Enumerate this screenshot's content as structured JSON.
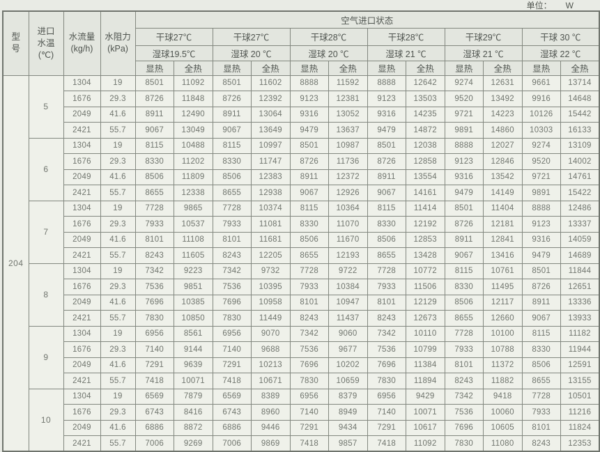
{
  "unit": {
    "label": "单位：",
    "value": "W"
  },
  "table": {
    "header": {
      "model_lines": [
        "型",
        "号"
      ],
      "inlet_lines": [
        "进口",
        "水温",
        "(℃)"
      ],
      "flow_lines": [
        "水流量",
        "(kg/h)"
      ],
      "resistance_lines": [
        "水阻力",
        "(kPa)"
      ],
      "air_state": "空气进口状态",
      "groups": [
        {
          "dry": "干球27℃",
          "wet": "湿球19.5℃"
        },
        {
          "dry": "干球27℃",
          "wet": "湿球 20 ℃"
        },
        {
          "dry": "干球28℃",
          "wet": "湿球 20 ℃"
        },
        {
          "dry": "干球28℃",
          "wet": "湿球 21 ℃"
        },
        {
          "dry": "干球29℃",
          "wet": "湿球 21 ℃"
        },
        {
          "dry": "干球 30 ℃",
          "wet": "湿球 22 ℃"
        }
      ],
      "sensible": "显热",
      "total": "全热"
    },
    "model_value": "204",
    "row_groups": [
      {
        "water_temp": "5",
        "rows": [
          {
            "flow": "1304",
            "resistance": "19",
            "values": [
              8501,
              11092,
              8501,
              11602,
              8888,
              11592,
              8888,
              12642,
              9274,
              12631,
              9661,
              13714
            ]
          },
          {
            "flow": "1676",
            "resistance": "29.3",
            "values": [
              8726,
              11848,
              8726,
              12392,
              9123,
              12381,
              9123,
              13503,
              9520,
              13492,
              9916,
              14648
            ]
          },
          {
            "flow": "2049",
            "resistance": "41.6",
            "values": [
              8911,
              12490,
              8911,
              13064,
              9316,
              13052,
              9316,
              14235,
              9721,
              14223,
              10126,
              15442
            ]
          },
          {
            "flow": "2421",
            "resistance": "55.7",
            "values": [
              9067,
              13049,
              9067,
              13649,
              9479,
              13637,
              9479,
              14872,
              9891,
              14860,
              10303,
              16133
            ]
          }
        ]
      },
      {
        "water_temp": "6",
        "rows": [
          {
            "flow": "1304",
            "resistance": "19",
            "values": [
              8115,
              10488,
              8115,
              10997,
              8501,
              10987,
              8501,
              12038,
              8888,
              12027,
              9274,
              13109
            ]
          },
          {
            "flow": "1676",
            "resistance": "29.3",
            "values": [
              8330,
              11202,
              8330,
              11747,
              8726,
              11736,
              8726,
              12858,
              9123,
              12846,
              9520,
              14002
            ]
          },
          {
            "flow": "2049",
            "resistance": "41.6",
            "values": [
              8506,
              11809,
              8506,
              12383,
              8911,
              12372,
              8911,
              13554,
              9316,
              13542,
              9721,
              14761
            ]
          },
          {
            "flow": "2421",
            "resistance": "55.7",
            "values": [
              8655,
              12338,
              8655,
              12938,
              9067,
              12926,
              9067,
              14161,
              9479,
              14149,
              9891,
              15422
            ]
          }
        ]
      },
      {
        "water_temp": "7",
        "rows": [
          {
            "flow": "1304",
            "resistance": "19",
            "values": [
              7728,
              9865,
              7728,
              10374,
              8115,
              10364,
              8115,
              11414,
              8501,
              11404,
              8888,
              12486
            ]
          },
          {
            "flow": "1676",
            "resistance": "29.3",
            "values": [
              7933,
              10537,
              7933,
              11081,
              8330,
              11070,
              8330,
              12192,
              8726,
              12181,
              9123,
              13337
            ]
          },
          {
            "flow": "2049",
            "resistance": "41.6",
            "values": [
              8101,
              11108,
              8101,
              11681,
              8506,
              11670,
              8506,
              12853,
              8911,
              12841,
              9316,
              14059
            ]
          },
          {
            "flow": "2421",
            "resistance": "55.7",
            "values": [
              8243,
              11605,
              8243,
              12205,
              8655,
              12193,
              8655,
              13428,
              9067,
              13416,
              9479,
              14689
            ]
          }
        ]
      },
      {
        "water_temp": "8",
        "rows": [
          {
            "flow": "1304",
            "resistance": "19",
            "values": [
              7342,
              9223,
              7342,
              9732,
              7728,
              9722,
              7728,
              10772,
              8115,
              10761,
              8501,
              11844
            ]
          },
          {
            "flow": "1676",
            "resistance": "29.3",
            "values": [
              7536,
              9851,
              7536,
              10395,
              7933,
              10384,
              7933,
              11506,
              8330,
              11495,
              8726,
              12651
            ]
          },
          {
            "flow": "2049",
            "resistance": "41.6",
            "values": [
              7696,
              10385,
              7696,
              10958,
              8101,
              10947,
              8101,
              12129,
              8506,
              12117,
              8911,
              13336
            ]
          },
          {
            "flow": "2421",
            "resistance": "55.7",
            "values": [
              7830,
              10850,
              7830,
              11449,
              8243,
              11437,
              8243,
              12673,
              8655,
              12660,
              9067,
              13933
            ]
          }
        ]
      },
      {
        "water_temp": "9",
        "rows": [
          {
            "flow": "1304",
            "resistance": "19",
            "values": [
              6956,
              8561,
              6956,
              9070,
              7342,
              9060,
              7342,
              10110,
              7728,
              10100,
              8115,
              11182
            ]
          },
          {
            "flow": "1676",
            "resistance": "29.3",
            "values": [
              7140,
              9144,
              7140,
              9688,
              7536,
              9677,
              7536,
              10799,
              7933,
              10788,
              8330,
              11944
            ]
          },
          {
            "flow": "2049",
            "resistance": "41.6",
            "values": [
              7291,
              9639,
              7291,
              10213,
              7696,
              10202,
              7696,
              11384,
              8101,
              11372,
              8506,
              12591
            ]
          },
          {
            "flow": "2421",
            "resistance": "55.7",
            "values": [
              7418,
              10071,
              7418,
              10671,
              7830,
              10659,
              7830,
              11894,
              8243,
              11882,
              8655,
              13155
            ]
          }
        ]
      },
      {
        "water_temp": "10",
        "rows": [
          {
            "flow": "1304",
            "resistance": "19",
            "values": [
              6569,
              7879,
              6569,
              8389,
              6956,
              8379,
              6956,
              9429,
              7342,
              9418,
              7728,
              10501
            ]
          },
          {
            "flow": "1676",
            "resistance": "29.3",
            "values": [
              6743,
              8416,
              6743,
              8960,
              7140,
              8949,
              7140,
              10071,
              7536,
              10060,
              7933,
              11216
            ]
          },
          {
            "flow": "2049",
            "resistance": "41.6",
            "values": [
              6886,
              8872,
              6886,
              9446,
              7291,
              9434,
              7291,
              10617,
              7696,
              10605,
              8101,
              11824
            ]
          },
          {
            "flow": "2421",
            "resistance": "55.7",
            "values": [
              7006,
              9269,
              7006,
              9869,
              7418,
              9857,
              7418,
              11092,
              7830,
              11080,
              8243,
              12353
            ]
          }
        ]
      }
    ]
  }
}
